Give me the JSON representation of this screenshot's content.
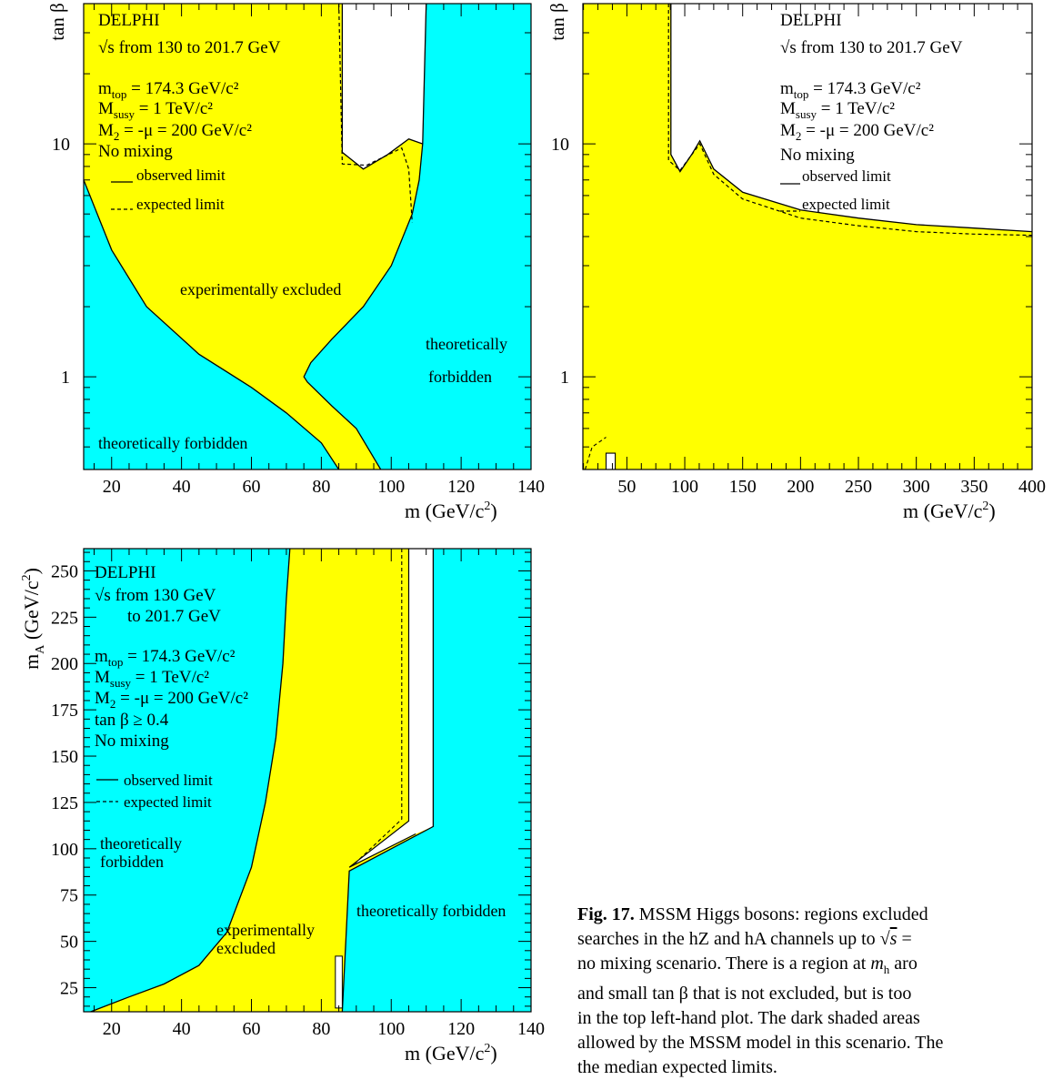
{
  "colors": {
    "excluded": "#ffff00",
    "forbidden": "#00ffff",
    "allowed": "#ffffff",
    "line": "#000000"
  },
  "chart_data": [
    {
      "type": "area",
      "panel": "top-left",
      "xlabel": "m  (GeV/c²)",
      "ylabel": "tan β",
      "xlim": [
        12,
        140
      ],
      "ylim": [
        0.4,
        40
      ],
      "yscale": "log",
      "x_ticks": [
        20,
        40,
        60,
        80,
        100,
        120,
        140
      ],
      "y_ticks": [
        {
          "v": 1,
          "label": "1"
        },
        {
          "v": 10,
          "label": "10"
        }
      ],
      "text": {
        "experiment": "DELPHI",
        "energy": "√s from 130 to 201.7 GeV",
        "mtop": "m",
        "mtop_sub": "top",
        "mtop_val": " = 174.3 GeV/c²",
        "msusy": "M",
        "msusy_sub": "susy",
        "msusy_val": " = 1 TeV/c²",
        "m2": "M",
        "m2_sub": "2",
        "m2_val": " = -μ = 200 GeV/c²",
        "mixing": "No mixing",
        "observed": "observed limit",
        "expected": "expected limit",
        "excluded_label": "experimentally excluded",
        "forbidden_left": "theoretically forbidden",
        "forbidden_right_1": "theoretically",
        "forbidden_right_2": "forbidden"
      },
      "forbidden_left_boundary": [
        [
          12,
          7
        ],
        [
          20,
          3.5
        ],
        [
          30,
          2.0
        ],
        [
          45,
          1.25
        ],
        [
          60,
          0.9
        ],
        [
          70,
          0.7
        ],
        [
          80,
          0.52
        ],
        [
          85,
          0.4
        ]
      ],
      "forbidden_right_boundary": [
        [
          97,
          0.4
        ],
        [
          90,
          0.6
        ],
        [
          83,
          0.75
        ],
        [
          76,
          0.95
        ],
        [
          75,
          1.0
        ],
        [
          77,
          1.15
        ],
        [
          83,
          1.45
        ],
        [
          92,
          2.0
        ],
        [
          100,
          3.0
        ],
        [
          106,
          5.0
        ],
        [
          108,
          7.0
        ],
        [
          109,
          10.0
        ],
        [
          110,
          40
        ]
      ],
      "allowed_region_observed": [
        [
          86,
          40
        ],
        [
          86,
          9.2
        ],
        [
          92,
          7.8
        ],
        [
          99,
          9.0
        ],
        [
          105,
          10.5
        ],
        [
          109,
          10.0
        ],
        [
          110,
          40
        ]
      ],
      "expected_limit": [
        [
          85,
          40
        ],
        [
          86,
          8.2
        ],
        [
          93,
          8.1
        ],
        [
          103,
          9.6
        ],
        [
          105,
          7.8
        ],
        [
          106,
          4.6
        ]
      ]
    },
    {
      "type": "area",
      "panel": "top-right",
      "xlabel": "m  (GeV/c²)",
      "ylabel": "tan β",
      "xlim": [
        12,
        400
      ],
      "ylim": [
        0.4,
        40
      ],
      "yscale": "log",
      "x_ticks": [
        50,
        100,
        150,
        200,
        250,
        300,
        350,
        400
      ],
      "y_ticks": [
        {
          "v": 1,
          "label": "1"
        },
        {
          "v": 10,
          "label": "10"
        }
      ],
      "text": {
        "experiment": "DELPHI",
        "energy": "√s from 130 to 201.7 GeV",
        "mtop": "m",
        "mtop_sub": "top",
        "mtop_val": " = 174.3 GeV/c²",
        "msusy": "M",
        "msusy_sub": "susy",
        "msusy_val": " = 1 TeV/c²",
        "m2": "M",
        "m2_sub": "2",
        "m2_val": " = -μ = 200 GeV/c²",
        "mixing": "No mixing",
        "observed": "observed limit",
        "expected": "expected limit"
      },
      "observed_limit": [
        [
          88,
          40
        ],
        [
          88,
          9.0
        ],
        [
          96,
          7.6
        ],
        [
          106,
          9.0
        ],
        [
          113,
          10.3
        ],
        [
          125,
          7.8
        ],
        [
          150,
          6.2
        ],
        [
          200,
          5.2
        ],
        [
          250,
          4.8
        ],
        [
          300,
          4.5
        ],
        [
          350,
          4.35
        ],
        [
          400,
          4.2
        ]
      ],
      "expected_limit": [
        [
          86,
          40
        ],
        [
          86,
          8.5
        ],
        [
          96,
          7.7
        ],
        [
          113,
          10.0
        ],
        [
          125,
          7.4
        ],
        [
          150,
          5.8
        ],
        [
          200,
          4.8
        ],
        [
          250,
          4.45
        ],
        [
          300,
          4.2
        ],
        [
          350,
          4.1
        ],
        [
          400,
          4.05
        ]
      ],
      "small_allowed_region": [
        [
          32,
          0.4
        ],
        [
          32,
          0.47
        ],
        [
          40,
          0.47
        ],
        [
          40,
          0.4
        ]
      ]
    },
    {
      "type": "area",
      "panel": "bottom-left",
      "xlabel": "m  (GeV/c²)",
      "ylabel": "m_A (GeV/c²)",
      "xlim": [
        12,
        140
      ],
      "ylim": [
        12,
        262
      ],
      "x_ticks": [
        20,
        40,
        60,
        80,
        100,
        120,
        140
      ],
      "y_ticks": [
        25,
        50,
        75,
        100,
        125,
        150,
        175,
        200,
        225,
        250
      ],
      "text": {
        "experiment": "DELPHI",
        "energy_1": "√s from 130 GeV",
        "energy_2": "to 201.7 GeV",
        "mtop": "m",
        "mtop_sub": "top",
        "mtop_val": " = 174.3 GeV/c²",
        "msusy": "M",
        "msusy_sub": "susy",
        "msusy_val": " = 1 TeV/c²",
        "m2": "M",
        "m2_sub": "2",
        "m2_val": " = -μ = 200 GeV/c²",
        "tanb": "tan β ≥ 0.4",
        "mixing": "No mixing",
        "observed": "observed limit",
        "expected": "expected limit",
        "forbidden_left_1": "theoretically",
        "forbidden_left_2": "forbidden",
        "forbidden_right": "theoretically forbidden",
        "excluded_1": "experimentally",
        "excluded_2": "excluded"
      },
      "forbidden_left_boundary": [
        [
          14,
          12
        ],
        [
          25,
          20
        ],
        [
          35,
          27
        ],
        [
          45,
          37
        ],
        [
          53,
          55
        ],
        [
          60,
          90
        ],
        [
          64,
          125
        ],
        [
          67,
          160
        ],
        [
          69,
          200
        ],
        [
          70,
          235
        ],
        [
          71,
          262
        ]
      ],
      "forbidden_right_boundary": [
        [
          86,
          12
        ],
        [
          87,
          50
        ],
        [
          88,
          88
        ],
        [
          112,
          112
        ],
        [
          112,
          262
        ]
      ],
      "allowed_strip": [
        [
          105,
          262
        ],
        [
          105,
          115
        ],
        [
          88,
          90
        ],
        [
          107,
          108
        ],
        [
          112,
          112
        ],
        [
          112,
          262
        ]
      ],
      "expected_limit": [
        [
          103,
          262
        ],
        [
          103,
          116
        ],
        [
          89,
          91
        ]
      ],
      "small_allowed_region": [
        [
          84,
          14
        ],
        [
          84,
          42
        ],
        [
          86,
          42
        ],
        [
          86,
          14
        ]
      ]
    }
  ],
  "caption": {
    "fig": "Fig. 17.",
    "line1": " MSSM Higgs bosons: regions excluded",
    "line2a": "searches in the hZ and hA channels up to ",
    "line2b": " =",
    "line3": "no mixing scenario. There is a region at ",
    "line3b": " aro",
    "line4": "and small tan β that is not excluded, but is too",
    "line5": "in the top left-hand plot. The dark shaded areas",
    "line6": "allowed by the MSSM model in this scenario. The",
    "line7": "the median expected limits."
  }
}
